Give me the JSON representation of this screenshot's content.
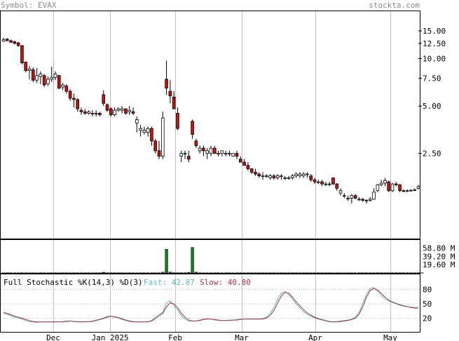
{
  "header": {
    "symbol_label": "Symbol: EVAX",
    "watermark": "stockta.com"
  },
  "colors": {
    "up": "#ffffff",
    "down": "#cc1111",
    "outline": "#000000",
    "volume": "#1a7a1a",
    "fast": "#55bbbb",
    "slow": "#aa3344",
    "grid": "#bdbdbd",
    "header_text": "#8a8a8a"
  },
  "chart_data": [
    {
      "type": "candlestick",
      "scale": "log",
      "ylim": [
        0.72,
        20.0
      ],
      "y_ticks": [
        "15.00",
        "12.50",
        "10.00",
        "7.50",
        "5.00",
        "2.50"
      ],
      "y_tick_values": [
        15.0,
        12.5,
        10.0,
        7.5,
        5.0,
        2.5
      ],
      "x_ticks": [
        "Dec",
        "Jan 2025",
        "Feb",
        "Mar",
        "Apr",
        "May"
      ],
      "ohlc": [
        [
          12.9,
          13.6,
          12.8,
          13.2
        ],
        [
          13.3,
          13.5,
          12.9,
          13.0
        ],
        [
          13.0,
          13.2,
          12.6,
          12.7
        ],
        [
          12.8,
          13.0,
          12.3,
          12.5
        ],
        [
          12.6,
          12.8,
          11.9,
          12.1
        ],
        [
          12.1,
          12.2,
          9.2,
          9.4
        ],
        [
          9.5,
          9.6,
          8.2,
          8.4
        ],
        [
          8.4,
          9.0,
          7.4,
          8.6
        ],
        [
          8.5,
          8.8,
          7.1,
          7.3
        ],
        [
          7.3,
          8.7,
          7.0,
          7.8
        ],
        [
          7.7,
          8.3,
          6.9,
          8.0
        ],
        [
          7.8,
          8.0,
          6.6,
          6.8
        ],
        [
          6.9,
          7.7,
          6.7,
          7.4
        ],
        [
          7.4,
          8.9,
          7.1,
          7.6
        ],
        [
          7.6,
          8.3,
          7.3,
          8.0
        ],
        [
          7.8,
          7.9,
          6.4,
          6.5
        ],
        [
          6.6,
          7.0,
          6.3,
          6.8
        ],
        [
          6.7,
          6.9,
          6.0,
          6.2
        ],
        [
          6.2,
          6.4,
          5.4,
          5.6
        ],
        [
          5.6,
          6.0,
          4.9,
          5.5
        ],
        [
          5.5,
          5.6,
          4.6,
          4.8
        ],
        [
          4.7,
          4.9,
          4.4,
          4.6
        ],
        [
          4.6,
          4.8,
          4.4,
          4.5
        ],
        [
          4.5,
          4.7,
          4.4,
          4.6
        ],
        [
          4.5,
          4.7,
          4.3,
          4.5
        ],
        [
          4.5,
          4.7,
          4.3,
          4.5
        ],
        [
          4.5,
          4.6,
          4.3,
          4.4
        ],
        [
          5.9,
          6.3,
          5.0,
          5.2
        ],
        [
          5.1,
          5.2,
          4.6,
          4.7
        ],
        [
          4.8,
          4.9,
          4.3,
          4.4
        ],
        [
          4.4,
          4.9,
          4.3,
          4.7
        ],
        [
          4.7,
          4.9,
          4.6,
          4.8
        ],
        [
          4.7,
          5.0,
          4.5,
          4.8
        ],
        [
          4.8,
          4.8,
          4.4,
          4.5
        ],
        [
          4.6,
          5.0,
          4.4,
          4.7
        ],
        [
          4.6,
          4.9,
          4.4,
          4.5
        ],
        [
          3.9,
          4.3,
          3.4,
          4.1
        ],
        [
          3.5,
          3.8,
          3.2,
          3.6
        ],
        [
          3.4,
          3.7,
          3.3,
          3.5
        ],
        [
          3.4,
          3.7,
          3.2,
          3.6
        ],
        [
          3.6,
          3.7,
          2.8,
          3.0
        ],
        [
          3.0,
          3.1,
          2.5,
          2.6
        ],
        [
          2.6,
          3.0,
          2.3,
          2.4
        ],
        [
          2.4,
          4.6,
          2.3,
          4.2
        ],
        [
          7.4,
          9.7,
          5.9,
          6.5
        ],
        [
          6.2,
          7.3,
          5.2,
          5.8
        ],
        [
          5.7,
          6.2,
          4.8,
          4.8
        ],
        [
          4.5,
          4.9,
          3.5,
          3.6
        ],
        [
          2.4,
          2.6,
          2.2,
          2.5
        ],
        [
          2.5,
          2.6,
          2.3,
          2.5
        ],
        [
          2.4,
          2.6,
          2.2,
          2.3
        ],
        [
          4.0,
          4.1,
          3.1,
          3.3
        ],
        [
          3.0,
          3.1,
          2.7,
          2.8
        ],
        [
          2.6,
          2.8,
          2.5,
          2.7
        ],
        [
          2.7,
          2.8,
          2.4,
          2.6
        ],
        [
          2.5,
          2.7,
          2.3,
          2.6
        ],
        [
          2.5,
          2.8,
          2.4,
          2.7
        ],
        [
          2.7,
          2.8,
          2.5,
          2.5
        ],
        [
          2.5,
          2.6,
          2.4,
          2.5
        ],
        [
          2.5,
          2.6,
          2.4,
          2.6
        ],
        [
          2.5,
          2.6,
          2.4,
          2.5
        ],
        [
          2.5,
          2.6,
          2.4,
          2.5
        ],
        [
          2.4,
          2.5,
          2.4,
          2.5
        ],
        [
          2.5,
          2.6,
          2.3,
          2.4
        ],
        [
          2.3,
          2.4,
          2.2,
          2.2
        ],
        [
          2.2,
          2.3,
          2.1,
          2.1
        ],
        [
          2.1,
          2.2,
          1.95,
          2.0
        ],
        [
          2.0,
          2.0,
          1.85,
          1.9
        ],
        [
          1.9,
          2.0,
          1.8,
          1.85
        ],
        [
          1.85,
          1.9,
          1.75,
          1.8
        ],
        [
          1.8,
          1.9,
          1.7,
          1.8
        ],
        [
          1.8,
          1.85,
          1.75,
          1.8
        ],
        [
          1.75,
          1.85,
          1.7,
          1.8
        ],
        [
          1.8,
          1.85,
          1.7,
          1.75
        ],
        [
          1.75,
          1.85,
          1.7,
          1.8
        ],
        [
          1.8,
          1.85,
          1.7,
          1.8
        ],
        [
          1.75,
          1.8,
          1.7,
          1.75
        ],
        [
          1.75,
          1.8,
          1.7,
          1.75
        ],
        [
          1.75,
          1.85,
          1.7,
          1.8
        ],
        [
          1.8,
          1.9,
          1.75,
          1.85
        ],
        [
          1.8,
          1.9,
          1.75,
          1.85
        ],
        [
          1.8,
          1.9,
          1.75,
          1.85
        ],
        [
          1.85,
          1.9,
          1.75,
          1.85
        ],
        [
          1.8,
          1.85,
          1.65,
          1.7
        ],
        [
          1.7,
          1.75,
          1.6,
          1.65
        ],
        [
          1.65,
          1.7,
          1.6,
          1.65
        ],
        [
          1.65,
          1.7,
          1.55,
          1.6
        ],
        [
          1.6,
          1.65,
          1.55,
          1.6
        ],
        [
          1.6,
          1.65,
          1.55,
          1.6
        ],
        [
          1.75,
          1.75,
          1.58,
          1.6
        ],
        [
          1.6,
          1.62,
          1.45,
          1.5
        ],
        [
          1.4,
          1.5,
          1.35,
          1.45
        ],
        [
          1.35,
          1.4,
          1.3,
          1.35
        ],
        [
          1.3,
          1.35,
          1.25,
          1.3
        ],
        [
          1.3,
          1.38,
          1.2,
          1.35
        ],
        [
          1.35,
          1.38,
          1.28,
          1.3
        ],
        [
          1.28,
          1.32,
          1.25,
          1.28
        ],
        [
          1.28,
          1.3,
          1.23,
          1.26
        ],
        [
          1.25,
          1.28,
          1.2,
          1.26
        ],
        [
          1.26,
          1.32,
          1.24,
          1.28
        ],
        [
          1.28,
          1.5,
          1.27,
          1.42
        ],
        [
          1.45,
          1.6,
          1.42,
          1.58
        ],
        [
          1.58,
          1.7,
          1.55,
          1.62
        ],
        [
          1.62,
          1.75,
          1.55,
          1.68
        ],
        [
          1.65,
          1.68,
          1.42,
          1.45
        ],
        [
          1.45,
          1.62,
          1.42,
          1.6
        ],
        [
          1.6,
          1.65,
          1.55,
          1.58
        ],
        [
          1.58,
          1.6,
          1.42,
          1.45
        ],
        [
          1.45,
          1.48,
          1.42,
          1.44
        ],
        [
          1.44,
          1.48,
          1.42,
          1.45
        ],
        [
          1.45,
          1.48,
          1.43,
          1.46
        ],
        [
          1.46,
          1.5,
          1.44,
          1.47
        ],
        [
          1.5,
          1.58,
          1.47,
          1.54
        ]
      ]
    },
    {
      "type": "bar",
      "series_name": "Volume",
      "unit": "M",
      "ylim": [
        0,
        78
      ],
      "y_ticks": [
        "58.80 M",
        "39.20 M",
        "19.60 M"
      ],
      "y_tick_values": [
        58.8,
        39.2,
        19.6
      ],
      "values": [
        0.4,
        0.4,
        0.4,
        0.4,
        0.4,
        0.4,
        0.4,
        0.4,
        0.4,
        0.4,
        0.4,
        0.4,
        0.4,
        0.4,
        0.4,
        0.4,
        0.4,
        0.4,
        0.4,
        0.4,
        0.4,
        0.4,
        0.4,
        0.4,
        0.4,
        0.4,
        0.4,
        1.6,
        0.4,
        0.4,
        0.4,
        0.4,
        0.4,
        0.4,
        0.4,
        0.4,
        0.4,
        0.4,
        0.4,
        0.4,
        0.4,
        0.4,
        0.4,
        1.8,
        56.0,
        2.0,
        0.6,
        0.5,
        0.5,
        0.5,
        1.4,
        60.5,
        2.0,
        0.5,
        0.4,
        0.4,
        0.4,
        0.4,
        0.4,
        0.4,
        0.4,
        0.4,
        0.4,
        0.4,
        0.4,
        0.4,
        0.4,
        0.4,
        0.4,
        0.4,
        0.4,
        0.4,
        0.4,
        0.4,
        0.4,
        0.4,
        0.4,
        0.4,
        0.4,
        0.4,
        0.4,
        0.4,
        0.4,
        0.4,
        0.4,
        0.4,
        0.4,
        0.4,
        0.4,
        0.4,
        0.4,
        0.4,
        0.4,
        0.4,
        0.4,
        0.4,
        0.4,
        0.4,
        0.4,
        0.4,
        0.4,
        0.4,
        0.4,
        0.4,
        0.4,
        0.4,
        0.4,
        0.4,
        0.4,
        0.4,
        0.4,
        0.4,
        0.4,
        0.4
      ]
    },
    {
      "type": "line",
      "title": "Full Stochastic %K(14,3) %D(3)",
      "legend": {
        "fast_label": "Fast: 42.87",
        "slow_label": "Slow: 40.80"
      },
      "ylim": [
        0,
        100
      ],
      "y_ticks": [
        "80",
        "50",
        "20"
      ],
      "y_tick_values": [
        80,
        50,
        20
      ],
      "series": [
        {
          "name": "Fast",
          "values": [
            30,
            28,
            25,
            22,
            20,
            18,
            15,
            13,
            12,
            11,
            12,
            12,
            12,
            12,
            12,
            12,
            13,
            14,
            14,
            13,
            12,
            12,
            12,
            13,
            14,
            16,
            18,
            20,
            24,
            24,
            22,
            20,
            17,
            15,
            13,
            12,
            12,
            12,
            12,
            13,
            15,
            22,
            28,
            32,
            52,
            56,
            46,
            38,
            25,
            18,
            14,
            14,
            14,
            16,
            18,
            19,
            18,
            16,
            15,
            15,
            15,
            16,
            16,
            17,
            18,
            18,
            18,
            18,
            18,
            18,
            19,
            22,
            30,
            42,
            60,
            72,
            76,
            70,
            60,
            50,
            42,
            34,
            28,
            24,
            20,
            18,
            16,
            14,
            12,
            12,
            13,
            14,
            15,
            16,
            18,
            22,
            32,
            50,
            70,
            82,
            84,
            76,
            68,
            60,
            56,
            53,
            50,
            47,
            45,
            44,
            43,
            42,
            43
          ]
        },
        {
          "name": "Slow",
          "values": [
            32,
            30,
            27,
            24,
            22,
            20,
            17,
            15,
            13,
            12,
            12,
            12,
            12,
            12,
            12,
            12,
            12,
            13,
            14,
            13,
            13,
            12,
            12,
            13,
            13,
            15,
            17,
            19,
            22,
            24,
            23,
            21,
            19,
            16,
            14,
            13,
            12,
            12,
            12,
            12,
            14,
            19,
            25,
            30,
            44,
            52,
            50,
            42,
            30,
            22,
            16,
            14,
            14,
            15,
            17,
            18,
            18,
            17,
            16,
            15,
            15,
            15,
            16,
            16,
            17,
            18,
            18,
            18,
            18,
            18,
            18,
            20,
            26,
            36,
            52,
            66,
            74,
            72,
            64,
            54,
            46,
            38,
            31,
            26,
            22,
            19,
            17,
            15,
            13,
            12,
            12,
            13,
            14,
            15,
            17,
            20,
            28,
            44,
            64,
            78,
            82,
            79,
            72,
            64,
            58,
            54,
            51,
            48,
            46,
            44,
            42,
            41,
            41
          ]
        }
      ]
    }
  ]
}
